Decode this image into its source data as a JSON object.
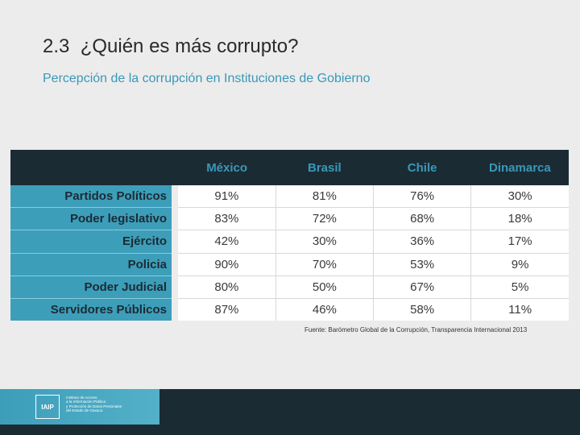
{
  "title": "2.3  ¿Quién es más corrupto?",
  "subtitle": "Percepción de la corrupción en Instituciones de Gobierno",
  "table": {
    "columns": [
      "México",
      "Brasil",
      "Chile",
      "Dinamarca"
    ],
    "rows": [
      {
        "label": "Partidos Políticos",
        "values": [
          "91%",
          "81%",
          "76%",
          "30%"
        ]
      },
      {
        "label": "Poder legislativo",
        "values": [
          "83%",
          "72%",
          "68%",
          "18%"
        ]
      },
      {
        "label": "Ejército",
        "values": [
          "42%",
          "30%",
          "36%",
          "17%"
        ]
      },
      {
        "label": "Policia",
        "values": [
          "90%",
          "70%",
          "53%",
          "9%"
        ]
      },
      {
        "label": "Poder Judicial",
        "values": [
          "80%",
          "50%",
          "67%",
          "5%"
        ]
      },
      {
        "label": "Servidores Públicos",
        "values": [
          "87%",
          "46%",
          "58%",
          "11%"
        ]
      }
    ]
  },
  "source": "Fuente: Barómetro Global de la Corrupción, Transparencia Internacional 2013",
  "footer": {
    "logo_abbr": "IAIP",
    "logo_lines": [
      "Instituto de Acceso",
      "a la Información Pública",
      "y Protección de Datos Personales",
      "del Estado de Oaxaca"
    ]
  },
  "colors": {
    "header_bg": "#1b2b34",
    "accent": "#3a98b8",
    "rowhead_bg": "#3d9eba",
    "page_bg": "#ececec"
  }
}
